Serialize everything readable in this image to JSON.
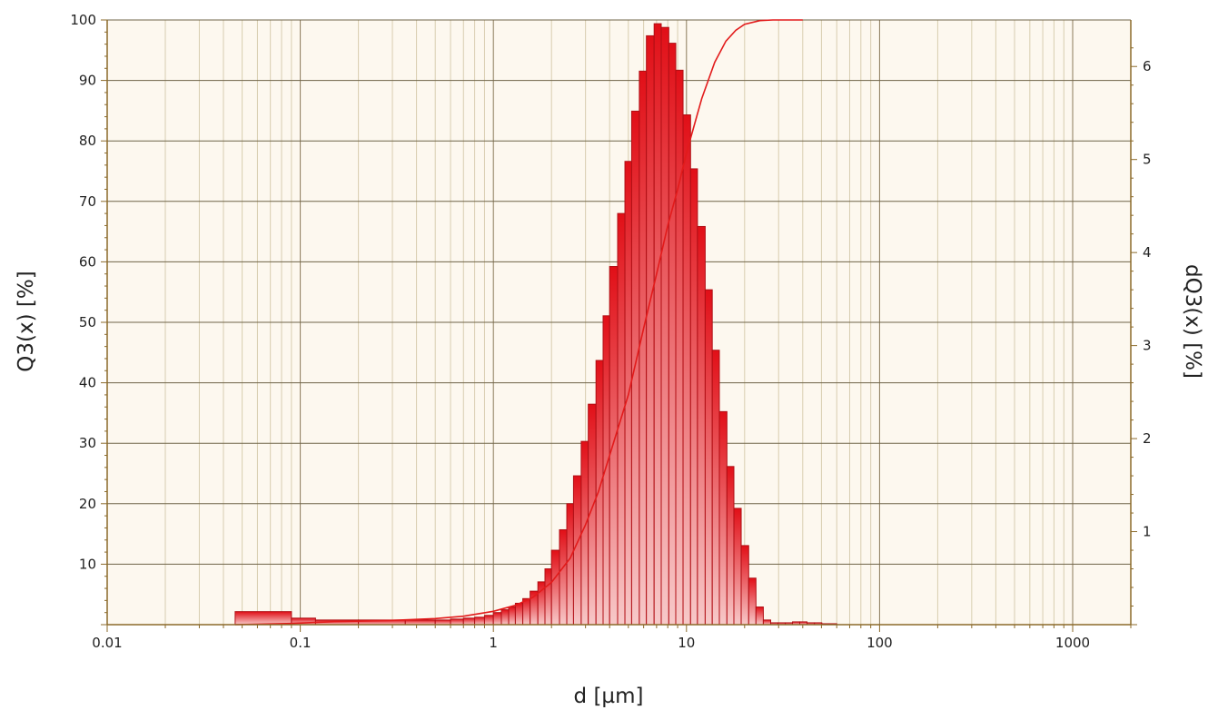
{
  "chart_data": {
    "type": "bar",
    "subtype": "particle-size-distribution",
    "xlabel": "d [µm]",
    "ylabel_left": "Q3(x) [%]",
    "ylabel_right": "dQ3(x) [%]",
    "x_scale": "log",
    "xlim": [
      0.01,
      2000
    ],
    "ylim_left": [
      0,
      100
    ],
    "ylim_right": [
      0,
      6.5
    ],
    "x_tick_labels": [
      "0.01",
      "0.1",
      "1",
      "10",
      "100",
      "1000"
    ],
    "y_left_tick_labels": [
      "10",
      "20",
      "30",
      "40",
      "50",
      "60",
      "70",
      "80",
      "90",
      "100"
    ],
    "y_right_tick_labels": [
      "1",
      "2",
      "3",
      "4",
      "5",
      "6"
    ],
    "grid": true,
    "colors": {
      "plot_background": "#fdf8ef",
      "bar": "#e8121a",
      "curve": "#e21b1b",
      "grid_major": "#8a7a5a",
      "grid_minor": "#d8cdb0",
      "axis": "#8b6a2a"
    },
    "series": [
      {
        "axis": "right",
        "kind": "histogram",
        "x": [
          0.046,
          0.09,
          0.12,
          0.2,
          0.35,
          0.5,
          0.6,
          0.7,
          0.8,
          0.9,
          1.0,
          1.1,
          1.2,
          1.3,
          1.42,
          1.55,
          1.7,
          1.85,
          2.0,
          2.2,
          2.4,
          2.6,
          2.85,
          3.1,
          3.4,
          3.7,
          4.0,
          4.4,
          4.8,
          5.2,
          5.7,
          6.2,
          6.8,
          7.4,
          8.1,
          8.8,
          9.6,
          10.5,
          11.4,
          12.5,
          13.6,
          14.8,
          16.2,
          17.6,
          19.2,
          21.0,
          22.9,
          25.0,
          27.3,
          29.8,
          32.5,
          35.4,
          38.6,
          42.1,
          46.0,
          50.2,
          54.8,
          60.0
        ],
        "values": [
          0.14,
          0.07,
          0.05,
          0.05,
          0.05,
          0.05,
          0.06,
          0.07,
          0.08,
          0.1,
          0.13,
          0.16,
          0.19,
          0.23,
          0.28,
          0.36,
          0.46,
          0.6,
          0.8,
          1.02,
          1.3,
          1.6,
          1.97,
          2.37,
          2.84,
          3.32,
          3.85,
          4.42,
          4.98,
          5.52,
          5.95,
          6.33,
          6.46,
          6.42,
          6.25,
          5.96,
          5.48,
          4.9,
          4.28,
          3.6,
          2.95,
          2.29,
          1.7,
          1.25,
          0.85,
          0.5,
          0.19,
          0.05,
          0.02,
          0.02,
          0.02,
          0.03,
          0.03,
          0.02,
          0.02,
          0.01,
          0.01,
          0.0
        ]
      },
      {
        "axis": "left",
        "kind": "cumulative-line",
        "x": [
          0.046,
          0.09,
          0.15,
          0.3,
          0.5,
          0.7,
          1.0,
          1.3,
          1.6,
          2.0,
          2.5,
          3.0,
          3.5,
          4.0,
          5.0,
          6.0,
          7.0,
          8.0,
          9.0,
          10.0,
          12.0,
          14.0,
          16.0,
          18.0,
          20.0,
          24.0,
          28.0,
          40.0
        ],
        "values": [
          0.0,
          0.2,
          0.5,
          0.7,
          1.0,
          1.4,
          2.2,
          3.2,
          4.5,
          7.0,
          11.0,
          16.5,
          22.0,
          28.0,
          38.0,
          49.0,
          58.0,
          66.0,
          72.0,
          78.0,
          87.0,
          93.0,
          96.5,
          98.3,
          99.3,
          99.9,
          100.0,
          100.0
        ]
      }
    ]
  }
}
